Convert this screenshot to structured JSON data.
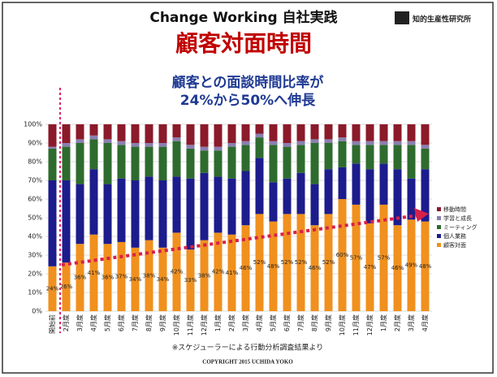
{
  "header": {
    "title": "Change Working 自社実践",
    "headline": "顧客対面時間",
    "subtitle_lines": [
      "顧客との面談時間比率が",
      "24%から50%へ伸長"
    ],
    "logo": "知的生産性研究所"
  },
  "chart_data": {
    "type": "stacked_bar",
    "categories": [
      "開始前",
      "2月度",
      "3月度",
      "4月度",
      "5月度",
      "6月度",
      "7月度",
      "8月度",
      "9月度",
      "10月度",
      "11月度",
      "12月度",
      "1月度",
      "2月度",
      "3月度",
      "4月度",
      "5月度",
      "6月度",
      "7月度",
      "8月度",
      "9月度",
      "10月度",
      "11月度",
      "12月度",
      "1月度",
      "2月度",
      "3月度",
      "4月度"
    ],
    "series": [
      {
        "name": "顧客対面",
        "color": "#f0901e",
        "values": [
          24,
          26,
          36,
          41,
          36,
          37,
          34,
          38,
          34,
          42,
          33,
          38,
          42,
          41,
          46,
          52,
          48,
          52,
          52,
          46,
          52,
          60,
          57,
          47,
          57,
          46,
          49,
          48
        ],
        "value_labels": [
          "24%",
          "26%",
          "36%",
          "41%",
          "36%",
          "37%",
          "34%",
          "38%",
          "34%",
          "42%",
          "33%",
          "38%",
          "42%",
          "41%",
          "46%",
          "52%",
          "48%",
          "52%",
          "52%",
          "46%",
          "52%",
          "60%",
          "57%",
          "47%",
          "57%",
          "46%",
          "49%",
          "48%"
        ]
      },
      {
        "name": "個人業務",
        "color": "#1c1c8c",
        "values": [
          46,
          44,
          32,
          35,
          32,
          34,
          36,
          34,
          36,
          30,
          38,
          36,
          30,
          30,
          29,
          30,
          21,
          19,
          22,
          22,
          24,
          17,
          22,
          29,
          22,
          30,
          22,
          28
        ]
      },
      {
        "name": "ミーティング",
        "color": "#2e6b2e",
        "values": [
          17,
          18,
          22,
          16,
          22,
          18,
          18,
          16,
          18,
          19,
          16,
          12,
          14,
          17,
          14,
          11,
          20,
          17,
          15,
          22,
          14,
          14,
          10,
          13,
          10,
          13,
          18,
          11
        ]
      },
      {
        "name": "学習と成長",
        "color": "#8a7fb0",
        "values": [
          1,
          2,
          2,
          2,
          2,
          2,
          2,
          2,
          2,
          2,
          2,
          2,
          2,
          2,
          2,
          2,
          2,
          2,
          2,
          2,
          2,
          2,
          2,
          2,
          2,
          2,
          2,
          2
        ]
      },
      {
        "name": "移動時間",
        "color": "#8b1a2a",
        "values": [
          12,
          10,
          8,
          6,
          8,
          9,
          10,
          10,
          10,
          7,
          11,
          12,
          12,
          10,
          9,
          5,
          9,
          10,
          9,
          8,
          8,
          7,
          9,
          9,
          9,
          9,
          9,
          11
        ]
      }
    ],
    "ylim": [
      0,
      100
    ],
    "yticks": [
      {
        "value": 0,
        "label": "0%"
      },
      {
        "value": 10,
        "label": "10%"
      },
      {
        "value": 20,
        "label": "20%"
      },
      {
        "value": 30,
        "label": "30%"
      },
      {
        "value": 40,
        "label": "40%"
      },
      {
        "value": 50,
        "label": "50%"
      },
      {
        "value": 60,
        "label": "60%"
      },
      {
        "value": 70,
        "label": "70%"
      },
      {
        "value": 80,
        "label": "80%"
      },
      {
        "value": 90,
        "label": "90%"
      },
      {
        "value": 100,
        "label": "100%"
      }
    ],
    "grid": true,
    "legend": "right"
  },
  "footer": {
    "note": "※スケジューラーによる行動分析調査結果より",
    "copyright": "COPYRIGHT 2015 UCHIDA YOKO"
  }
}
